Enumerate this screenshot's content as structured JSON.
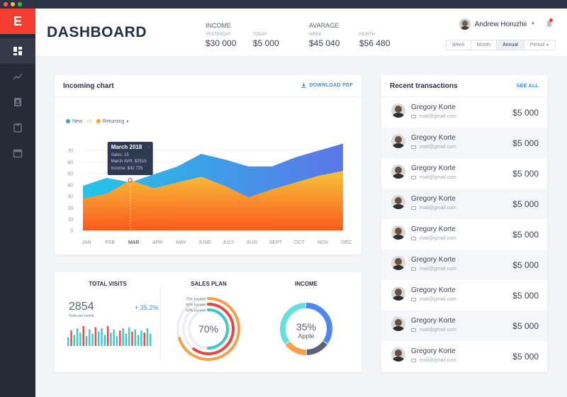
{
  "app": {
    "logo": "E",
    "title": "DASHBOARD"
  },
  "sidebar": {
    "items": [
      {
        "icon": "dashboard-icon",
        "active": true
      },
      {
        "icon": "trend-icon",
        "active": false
      },
      {
        "icon": "contact-icon",
        "active": false
      },
      {
        "icon": "clipboard-icon",
        "active": false
      },
      {
        "icon": "calendar-icon",
        "active": false
      }
    ]
  },
  "header": {
    "income": {
      "label": "INCOME",
      "yesterday_label": "YESTERDAY",
      "yesterday_value": "$30 000",
      "today_label": "TODAY",
      "today_value": "$5 000"
    },
    "average": {
      "label": "AVARAGE",
      "week_label": "WEEK",
      "week_value": "$45 040",
      "month_label": "MONTH",
      "month_value": "$56 480"
    },
    "user_name": "Andrew Horuzhii",
    "periods": [
      "Week",
      "Month",
      "Annual",
      "Period"
    ],
    "active_period": "Annual"
  },
  "incoming_chart": {
    "title": "Incoming chart",
    "download_label": "DOWNLOAD PDF",
    "legend_new": "New",
    "legend_vs": "VS",
    "legend_returning": "Returning",
    "tooltip": {
      "title": "March 2018",
      "line1": "Sales: 15",
      "line2": "March AVR: $2515",
      "line3": "Income: $42 725"
    }
  },
  "chart_data": {
    "type": "area",
    "categories": [
      "JAN",
      "FEB",
      "MAR",
      "APR",
      "MAY",
      "JUNE",
      "JULY",
      "AUG",
      "SEPT",
      "OCT",
      "NOV",
      "DEC"
    ],
    "series": [
      {
        "name": "New",
        "values": [
          39,
          46,
          42,
          49,
          56,
          67,
          62,
          56,
          56,
          64,
          70,
          76
        ]
      },
      {
        "name": "Returning",
        "values": [
          28,
          32,
          44,
          37,
          42,
          47,
          39,
          29,
          36,
          42,
          48,
          52
        ]
      }
    ],
    "ylim": [
      0,
      80
    ],
    "yticks": [
      0,
      10,
      20,
      30,
      40,
      50,
      60,
      70
    ],
    "highlight_category": "MAR",
    "colors": {
      "new_top": "#22c5e8",
      "new_bottom": "#5b76e8",
      "ret_top": "#f7c23a",
      "ret_bottom": "#fb5a20"
    }
  },
  "total_visits": {
    "title": "TOTAL VISITS",
    "value": "2854",
    "sub": "Visits per month",
    "change": "+ 35.2%",
    "bars": [
      8,
      14,
      10,
      16,
      12,
      18,
      9,
      15,
      11,
      17,
      13,
      16,
      10,
      18,
      12,
      15,
      9,
      14,
      16,
      11,
      17,
      13,
      15,
      10,
      14,
      12,
      16,
      11
    ],
    "bar_colors": [
      "#3ec6cf",
      "#e8493b",
      "#3ec6cf",
      "#3ec6cf"
    ]
  },
  "sales_plan": {
    "title": "SALES PLAN",
    "center": "70%",
    "rings": [
      {
        "label": "70% Income",
        "fraction": 0.7,
        "color": "#f5a04a"
      },
      {
        "label": "60% Income",
        "fraction": 0.6,
        "color": "#e8493b"
      },
      {
        "label": "50% Income",
        "fraction": 0.5,
        "color": "#3ec6cf"
      }
    ]
  },
  "income_donut": {
    "title": "INCOME",
    "center_value": "35%",
    "center_label": "Apple",
    "segments": [
      {
        "fraction": 0.35,
        "color": "#4e86f2"
      },
      {
        "fraction": 0.15,
        "color": "#5b6378"
      },
      {
        "fraction": 0.15,
        "color": "#f5a04a"
      },
      {
        "fraction": 0.35,
        "color": "#67dfe0"
      }
    ]
  },
  "transactions": {
    "title": "Recent transactions",
    "see_all": "SEE ALL",
    "rows": [
      {
        "name": "Gregory Korte",
        "email": "mail@gmail.com",
        "amount": "$5 000"
      },
      {
        "name": "Gregory Korte",
        "email": "mail@gmail.com",
        "amount": "$5 000"
      },
      {
        "name": "Gregory Korte",
        "email": "mail@gmail.com",
        "amount": "$5 000"
      },
      {
        "name": "Gregory Korte",
        "email": "mail@gmail.com",
        "amount": "$5 000"
      },
      {
        "name": "Gregory Korte",
        "email": "mail@gmail.com",
        "amount": "$5 000"
      },
      {
        "name": "Gregory Korte",
        "email": "mail@gmail.com",
        "amount": "$5 000"
      },
      {
        "name": "Gregory Korte",
        "email": "mail@gmail.com",
        "amount": "$5 000"
      },
      {
        "name": "Gregory Korte",
        "email": "mail@gmail.com",
        "amount": "$5 000"
      },
      {
        "name": "Gregory Korte",
        "email": "mail@gmail.com",
        "amount": "$5 000"
      }
    ]
  }
}
